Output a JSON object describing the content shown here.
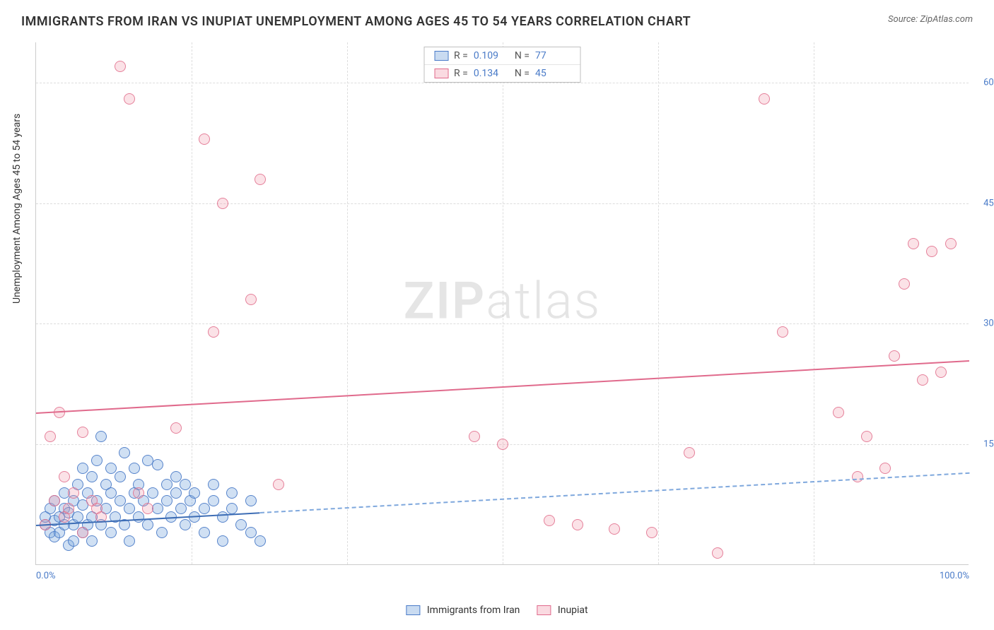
{
  "title": "IMMIGRANTS FROM IRAN VS INUPIAT UNEMPLOYMENT AMONG AGES 45 TO 54 YEARS CORRELATION CHART",
  "source_label": "Source:",
  "source_value": "ZipAtlas.com",
  "watermark_a": "ZIP",
  "watermark_b": "atlas",
  "yaxis_title": "Unemployment Among Ages 45 to 54 years",
  "chart": {
    "type": "scatter",
    "background_color": "#ffffff",
    "grid_color": "#dddddd",
    "xlim": [
      0,
      100
    ],
    "ylim": [
      0,
      65
    ],
    "x_ticks": [
      0,
      16.7,
      33.3,
      50,
      66.7,
      83.3,
      100
    ],
    "x_tick_labels": [
      "0.0%",
      "",
      "",
      "",
      "",
      "",
      "100.0%"
    ],
    "y_ticks": [
      15,
      30,
      45,
      60
    ],
    "y_tick_labels": [
      "15.0%",
      "30.0%",
      "45.0%",
      "60.0%"
    ],
    "series": [
      {
        "key": "blue",
        "label": "Immigrants from Iran",
        "color_fill": "rgba(120,165,220,0.35)",
        "color_stroke": "#4a7bc8",
        "r_label": "R =",
        "r_value": "0.109",
        "n_label": "N =",
        "n_value": "77",
        "trend": {
          "y_at_x0": 5.0,
          "y_at_x100": 11.5,
          "solid_until_x": 24
        },
        "points": [
          [
            1,
            5
          ],
          [
            1,
            6
          ],
          [
            1.5,
            4
          ],
          [
            1.5,
            7
          ],
          [
            2,
            3.5
          ],
          [
            2,
            5.5
          ],
          [
            2,
            8
          ],
          [
            2.5,
            6
          ],
          [
            2.5,
            4
          ],
          [
            3,
            7
          ],
          [
            3,
            5
          ],
          [
            3,
            9
          ],
          [
            3.5,
            2.5
          ],
          [
            3.5,
            6.5
          ],
          [
            4,
            5
          ],
          [
            4,
            8
          ],
          [
            4,
            3
          ],
          [
            4.5,
            10
          ],
          [
            4.5,
            6
          ],
          [
            5,
            4
          ],
          [
            5,
            7.5
          ],
          [
            5,
            12
          ],
          [
            5.5,
            5
          ],
          [
            5.5,
            9
          ],
          [
            6,
            3
          ],
          [
            6,
            6
          ],
          [
            6,
            11
          ],
          [
            6.5,
            8
          ],
          [
            6.5,
            13
          ],
          [
            7,
            5
          ],
          [
            7,
            16
          ],
          [
            7.5,
            7
          ],
          [
            7.5,
            10
          ],
          [
            8,
            4
          ],
          [
            8,
            12
          ],
          [
            8,
            9
          ],
          [
            8.5,
            6
          ],
          [
            9,
            11
          ],
          [
            9,
            8
          ],
          [
            9.5,
            5
          ],
          [
            9.5,
            14
          ],
          [
            10,
            7
          ],
          [
            10,
            3
          ],
          [
            10.5,
            9
          ],
          [
            10.5,
            12
          ],
          [
            11,
            6
          ],
          [
            11,
            10
          ],
          [
            11.5,
            8
          ],
          [
            12,
            13
          ],
          [
            12,
            5
          ],
          [
            12.5,
            9
          ],
          [
            13,
            7
          ],
          [
            13,
            12.5
          ],
          [
            13.5,
            4
          ],
          [
            14,
            10
          ],
          [
            14,
            8
          ],
          [
            14.5,
            6
          ],
          [
            15,
            11
          ],
          [
            15,
            9
          ],
          [
            15.5,
            7
          ],
          [
            16,
            5
          ],
          [
            16,
            10
          ],
          [
            16.5,
            8
          ],
          [
            17,
            6
          ],
          [
            17,
            9
          ],
          [
            18,
            7
          ],
          [
            18,
            4
          ],
          [
            19,
            8
          ],
          [
            19,
            10
          ],
          [
            20,
            6
          ],
          [
            20,
            3
          ],
          [
            21,
            7
          ],
          [
            21,
            9
          ],
          [
            22,
            5
          ],
          [
            23,
            4
          ],
          [
            23,
            8
          ],
          [
            24,
            3
          ]
        ]
      },
      {
        "key": "pink",
        "label": "Inupiat",
        "color_fill": "rgba(240,150,170,0.28)",
        "color_stroke": "#e06a8c",
        "r_label": "R =",
        "r_value": "0.134",
        "n_label": "N =",
        "n_value": "45",
        "trend": {
          "y_at_x0": 19.0,
          "y_at_x100": 25.5,
          "solid_until_x": 100
        },
        "points": [
          [
            1,
            5
          ],
          [
            1.5,
            16
          ],
          [
            2,
            8
          ],
          [
            2.5,
            19
          ],
          [
            3,
            6
          ],
          [
            3,
            11
          ],
          [
            3.5,
            7
          ],
          [
            4,
            9
          ],
          [
            5,
            16.5
          ],
          [
            5,
            4
          ],
          [
            6,
            8
          ],
          [
            6.5,
            7
          ],
          [
            7,
            6
          ],
          [
            9,
            62
          ],
          [
            10,
            58
          ],
          [
            11,
            9
          ],
          [
            12,
            7
          ],
          [
            15,
            17
          ],
          [
            18,
            53
          ],
          [
            19,
            29
          ],
          [
            20,
            45
          ],
          [
            23,
            33
          ],
          [
            24,
            48
          ],
          [
            26,
            10
          ],
          [
            47,
            16
          ],
          [
            50,
            15
          ],
          [
            55,
            5.5
          ],
          [
            58,
            5
          ],
          [
            62,
            4.5
          ],
          [
            66,
            4
          ],
          [
            70,
            14
          ],
          [
            73,
            1.5
          ],
          [
            78,
            58
          ],
          [
            80,
            29
          ],
          [
            86,
            19
          ],
          [
            88,
            11
          ],
          [
            89,
            16
          ],
          [
            91,
            12
          ],
          [
            92,
            26
          ],
          [
            93,
            35
          ],
          [
            94,
            40
          ],
          [
            95,
            23
          ],
          [
            96,
            39
          ],
          [
            97,
            24
          ],
          [
            98,
            40
          ]
        ]
      }
    ]
  },
  "legend_bottom": [
    {
      "swatch": "blue",
      "label": "Immigrants from Iran"
    },
    {
      "swatch": "pink",
      "label": "Inupiat"
    }
  ]
}
